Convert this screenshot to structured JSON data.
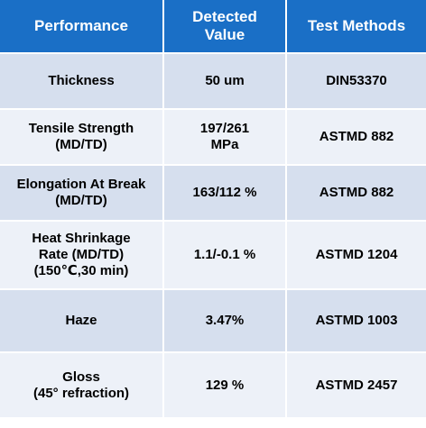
{
  "colors": {
    "header_bg": "#1a6fc6",
    "header_text": "#ffffff",
    "row_odd_bg": "#d6dfee",
    "row_even_bg": "#edf1f8",
    "cell_text": "#000000"
  },
  "table": {
    "headers": [
      "Performance",
      "Detected\nValue",
      "Test Methods"
    ],
    "rows": [
      {
        "performance": "Thickness",
        "value": "50 um",
        "method": "DIN53370"
      },
      {
        "performance": "Tensile Strength\n(MD/TD)",
        "value": "197/261\nMPa",
        "method": "ASTMD 882"
      },
      {
        "performance": "Elongation At Break\n(MD/TD)",
        "value": "163/112 %",
        "method": "ASTMD 882"
      },
      {
        "performance": "Heat Shrinkage\nRate (MD/TD)\n(150℃,30 min)",
        "value": "1.1/-0.1 %",
        "method": "ASTMD 1204"
      },
      {
        "performance": "Haze",
        "value": "3.47%",
        "method": "ASTMD 1003"
      },
      {
        "performance": "Gloss\n(45° refraction)",
        "value": "129 %",
        "method": "ASTMD 2457"
      }
    ]
  }
}
